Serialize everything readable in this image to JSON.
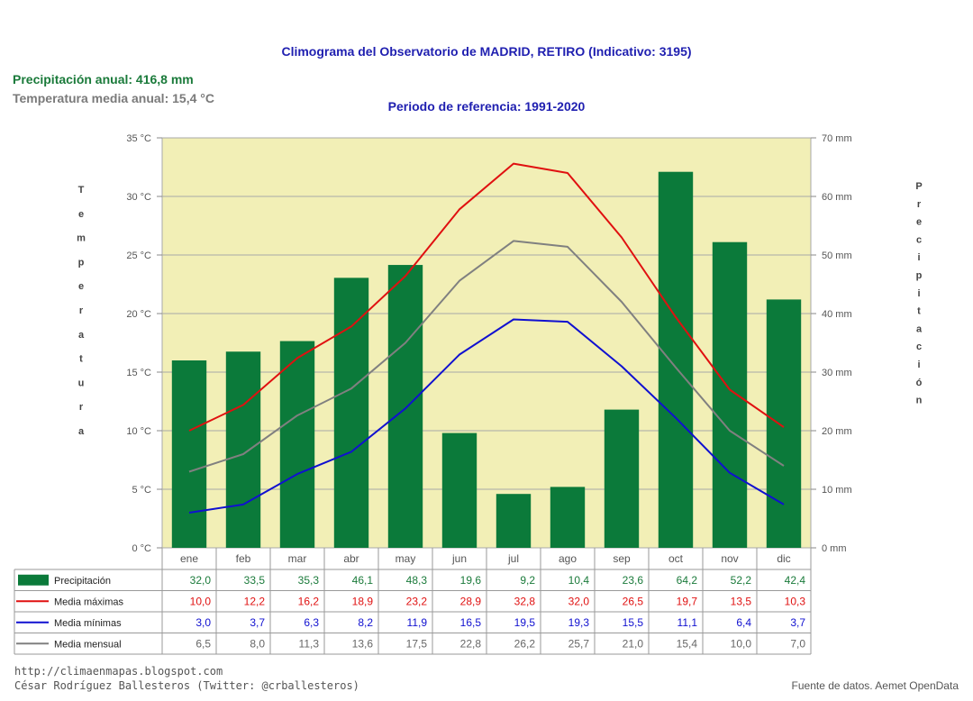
{
  "header": {
    "title": "Climograma del Observatorio de MADRID, RETIRO (Indicativo: 3195)",
    "period": "Periodo de referencia: 1991-2020",
    "annual_precip": "Precipitación anual: 416,8 mm",
    "annual_temp": "Temperatura media anual: 15,4 °C"
  },
  "footer": {
    "url": "http://climaenmapas.blogspot.com",
    "author": "César Rodríguez Ballesteros (Twitter: @crballesteros)",
    "source": "Fuente de datos. Aemet OpenData"
  },
  "colors": {
    "plot_bg": "#f2efb6",
    "precip": "#0b7a3a",
    "tmax": "#e01010",
    "tmin": "#1010d0",
    "tmean": "#808080",
    "precip_text": "#1a7a3a"
  },
  "chart_data": {
    "type": "bar+line",
    "categories": [
      "ene",
      "feb",
      "mar",
      "abr",
      "may",
      "jun",
      "jul",
      "ago",
      "sep",
      "oct",
      "nov",
      "dic"
    ],
    "left_axis": {
      "label": "Temperatura",
      "unit": "°C",
      "range": [
        0,
        35
      ],
      "ticks": [
        "0 °C",
        "5 °C",
        "10 °C",
        "15 °C",
        "20 °C",
        "25 °C",
        "30 °C",
        "35 °C"
      ]
    },
    "right_axis": {
      "label": "Precipitación",
      "unit": "mm",
      "range": [
        0,
        70
      ],
      "ticks": [
        "0 mm",
        "10 mm",
        "20 mm",
        "30 mm",
        "40 mm",
        "50 mm",
        "60 mm",
        "70 mm"
      ]
    },
    "grid": true,
    "series": [
      {
        "name": "Precipitación",
        "kind": "bar",
        "axis": "right",
        "color": "#0b7a3a",
        "values": [
          32.0,
          33.5,
          35.3,
          46.1,
          48.3,
          19.6,
          9.2,
          10.4,
          23.6,
          64.2,
          52.2,
          42.4
        ],
        "labels": [
          "32,0",
          "33,5",
          "35,3",
          "46,1",
          "48,3",
          "19,6",
          "9,2",
          "10,4",
          "23,6",
          "64,2",
          "52,2",
          "42,4"
        ]
      },
      {
        "name": "Media máximas",
        "kind": "line",
        "axis": "left",
        "color": "#e01010",
        "values": [
          10.0,
          12.2,
          16.2,
          18.9,
          23.2,
          28.9,
          32.8,
          32.0,
          26.5,
          19.7,
          13.5,
          10.3
        ],
        "labels": [
          "10,0",
          "12,2",
          "16,2",
          "18,9",
          "23,2",
          "28,9",
          "32,8",
          "32,0",
          "26,5",
          "19,7",
          "13,5",
          "10,3"
        ]
      },
      {
        "name": "Media mínimas",
        "kind": "line",
        "axis": "left",
        "color": "#1010d0",
        "values": [
          3.0,
          3.7,
          6.3,
          8.2,
          11.9,
          16.5,
          19.5,
          19.3,
          15.5,
          11.1,
          6.4,
          3.7
        ],
        "labels": [
          "3,0",
          "3,7",
          "6,3",
          "8,2",
          "11,9",
          "16,5",
          "19,5",
          "19,3",
          "15,5",
          "11,1",
          "6,4",
          "3,7"
        ]
      },
      {
        "name": "Media mensual",
        "kind": "line",
        "axis": "left",
        "color": "#808080",
        "values": [
          6.5,
          8.0,
          11.3,
          13.6,
          17.5,
          22.8,
          26.2,
          25.7,
          21.0,
          15.4,
          10.0,
          7.0
        ],
        "labels": [
          "6,5",
          "8,0",
          "11,3",
          "13,6",
          "17,5",
          "22,8",
          "26,2",
          "25,7",
          "21,0",
          "15,4",
          "10,0",
          "7,0"
        ]
      }
    ]
  }
}
